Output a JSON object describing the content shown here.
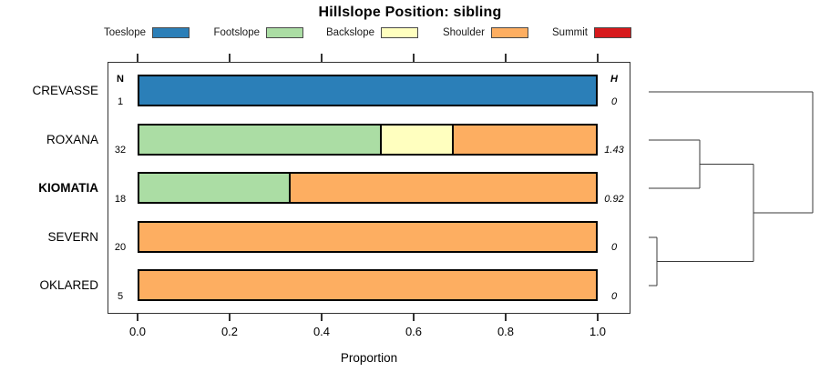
{
  "chart_data": {
    "type": "bar",
    "variant": "horizontal-stacked-proportion-with-dendrogram",
    "title": "Hillslope Position: sibling",
    "xlabel": "Proportion",
    "xlim": [
      0,
      1
    ],
    "xticks": [
      0.0,
      0.2,
      0.4,
      0.6,
      0.8,
      1.0
    ],
    "grid": false,
    "legend_position": "top",
    "col_headers": {
      "n": "N",
      "h": "H"
    },
    "categories": [
      {
        "label": "Toeslope",
        "color": "#2B7FB8"
      },
      {
        "label": "Footslope",
        "color": "#ABDDA4"
      },
      {
        "label": "Backslope",
        "color": "#FFFFBF"
      },
      {
        "label": "Shoulder",
        "color": "#FDAE61"
      },
      {
        "label": "Summit",
        "color": "#D7191C"
      }
    ],
    "rows": [
      {
        "label": "CREVASSE",
        "bold": false,
        "n": "1",
        "h": "0",
        "segments": [
          {
            "category": "Toeslope",
            "value": 1.0
          }
        ]
      },
      {
        "label": "ROXANA",
        "bold": false,
        "n": "32",
        "h": "1.43",
        "segments": [
          {
            "category": "Footslope",
            "value": 0.531
          },
          {
            "category": "Backslope",
            "value": 0.156
          },
          {
            "category": "Shoulder",
            "value": 0.313
          }
        ]
      },
      {
        "label": "KIOMATIA",
        "bold": true,
        "n": "18",
        "h": "0.92",
        "segments": [
          {
            "category": "Footslope",
            "value": 0.333
          },
          {
            "category": "Shoulder",
            "value": 0.667
          }
        ]
      },
      {
        "label": "SEVERN",
        "bold": false,
        "n": "20",
        "h": "0",
        "segments": [
          {
            "category": "Shoulder",
            "value": 1.0
          }
        ]
      },
      {
        "label": "OKLARED",
        "bold": false,
        "n": "5",
        "h": "0",
        "segments": [
          {
            "category": "Shoulder",
            "value": 1.0
          }
        ]
      }
    ],
    "dendrogram": {
      "description": "clusters: (SEVERN+OKLARED) join first, then with (ROXANA+KIOMATIA), then root joins CREVASSE",
      "stroke": "#3a3a3a",
      "segments": [
        [
          712,
          101,
          892,
          101
        ],
        [
          892,
          101,
          892,
          234
        ],
        [
          827,
          234,
          892,
          234
        ],
        [
          827,
          180.5,
          827,
          287.5
        ],
        [
          768,
          180.5,
          827,
          180.5
        ],
        [
          768,
          154,
          768,
          207
        ],
        [
          712,
          154,
          768,
          154
        ],
        [
          712,
          207,
          768,
          207
        ],
        [
          721,
          287.5,
          827,
          287.5
        ],
        [
          721,
          261,
          721,
          314
        ],
        [
          712,
          261,
          721,
          261
        ],
        [
          712,
          314,
          721,
          314
        ]
      ]
    },
    "colors": {
      "bar_border": "#000000",
      "axis": "#333333"
    }
  }
}
